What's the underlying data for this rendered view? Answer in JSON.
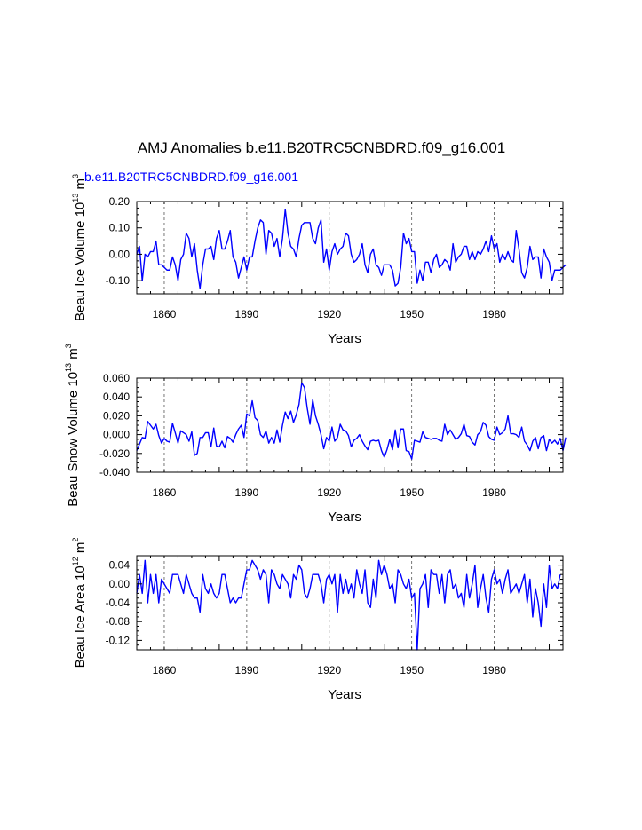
{
  "page": {
    "title": "AMJ Anomalies b.e11.B20TRC5CNBDRD.f09_g16.001",
    "subtitle": "b.e11.B20TRC5CNBDRD.f09_g16.001"
  },
  "colors": {
    "series": "#0000ff",
    "text": "#000000"
  },
  "chart_data": [
    {
      "type": "line",
      "name": "ice-volume",
      "xlabel": "Years",
      "ylabel": {
        "prefix": "Beau Ice Volume 10",
        "exp1": "13",
        "mid": " m",
        "exp2": "3"
      },
      "xlim": [
        1850,
        2005
      ],
      "ylim": [
        -0.15,
        0.2
      ],
      "xticks": [
        1860,
        1890,
        1920,
        1950,
        1980
      ],
      "xtick_labels": [
        "1860",
        "1890",
        "1920",
        "1950",
        "1980"
      ],
      "yticks": [
        -0.1,
        0.0,
        0.1,
        0.2
      ],
      "ytick_labels": [
        "-0.10",
        "0.00",
        "0.10",
        "0.20"
      ],
      "reference_lines_x": [
        1860,
        1890,
        1920,
        1950,
        1980
      ],
      "x_start": 1850,
      "values": [
        0.0,
        0.03,
        -0.1,
        0.0,
        -0.01,
        0.01,
        0.01,
        0.05,
        -0.04,
        -0.04,
        -0.05,
        -0.06,
        -0.06,
        -0.01,
        -0.04,
        -0.1,
        -0.02,
        0.0,
        0.08,
        0.06,
        -0.01,
        0.04,
        -0.06,
        -0.13,
        -0.04,
        0.02,
        0.02,
        0.03,
        -0.02,
        0.06,
        0.09,
        0.02,
        0.02,
        0.05,
        0.09,
        -0.01,
        -0.03,
        -0.09,
        -0.05,
        -0.01,
        -0.06,
        -0.01,
        -0.01,
        0.05,
        0.1,
        0.13,
        0.12,
        0.0,
        0.09,
        0.08,
        0.03,
        0.06,
        -0.01,
        0.06,
        0.17,
        0.08,
        0.03,
        0.02,
        -0.01,
        0.06,
        0.11,
        0.12,
        0.12,
        0.12,
        0.06,
        0.04,
        0.1,
        0.13,
        -0.03,
        0.02,
        -0.06,
        0.01,
        0.04,
        0.0,
        0.02,
        0.03,
        0.08,
        0.07,
        0.0,
        -0.03,
        -0.02,
        0.0,
        0.04,
        -0.04,
        -0.07,
        0.0,
        0.02,
        -0.04,
        -0.05,
        -0.08,
        -0.04,
        -0.04,
        -0.04,
        -0.06,
        -0.12,
        -0.11,
        -0.05,
        0.08,
        0.04,
        0.06,
        0.01,
        0.01,
        -0.11,
        -0.06,
        -0.1,
        -0.03,
        -0.03,
        -0.07,
        -0.02,
        0.0,
        -0.05,
        -0.04,
        -0.02,
        -0.03,
        -0.06,
        0.04,
        -0.03,
        -0.01,
        0.0,
        0.03,
        0.03,
        -0.02,
        0.01,
        -0.02,
        0.01,
        0.0,
        0.02,
        0.05,
        0.01,
        0.07,
        0.02,
        0.04,
        -0.03,
        0.0,
        -0.02,
        0.01,
        -0.02,
        -0.03,
        0.09,
        0.02,
        -0.07,
        -0.09,
        -0.05,
        0.03,
        -0.02,
        -0.01,
        -0.01,
        -0.09,
        0.02,
        -0.01,
        -0.03,
        -0.1,
        -0.06,
        -0.06,
        -0.06,
        -0.05,
        -0.04
      ]
    },
    {
      "type": "line",
      "name": "snow-volume",
      "xlabel": "Years",
      "ylabel": {
        "prefix": "Beau Snow Volume 10",
        "exp1": "13",
        "mid": " m",
        "exp2": "3"
      },
      "xlim": [
        1850,
        2005
      ],
      "ylim": [
        -0.04,
        0.06
      ],
      "xticks": [
        1860,
        1890,
        1920,
        1950,
        1980
      ],
      "xtick_labels": [
        "1860",
        "1890",
        "1920",
        "1950",
        "1980"
      ],
      "yticks": [
        -0.04,
        -0.02,
        0.0,
        0.02,
        0.04,
        0.06
      ],
      "ytick_labels": [
        "-0.040",
        "-0.020",
        "0.000",
        "0.020",
        "0.040",
        "0.060"
      ],
      "reference_lines_x": [
        1860,
        1890,
        1920,
        1950,
        1980
      ],
      "x_start": 1850,
      "values": [
        -0.017,
        -0.01,
        -0.003,
        -0.004,
        0.014,
        0.01,
        0.006,
        0.011,
        -0.001,
        -0.009,
        -0.004,
        -0.007,
        -0.008,
        0.012,
        0.002,
        -0.009,
        0.004,
        0.002,
        0.0,
        -0.007,
        0.003,
        -0.022,
        -0.02,
        -0.003,
        -0.003,
        0.002,
        0.002,
        -0.013,
        0.007,
        -0.012,
        -0.013,
        -0.007,
        -0.014,
        -0.002,
        -0.004,
        -0.008,
        0.0,
        0.006,
        0.01,
        -0.003,
        0.022,
        0.02,
        0.036,
        0.018,
        0.015,
        0.0,
        -0.003,
        0.004,
        -0.009,
        -0.003,
        -0.009,
        0.005,
        -0.008,
        0.01,
        0.024,
        0.017,
        0.025,
        0.013,
        0.021,
        0.032,
        0.055,
        0.05,
        0.028,
        0.011,
        0.037,
        0.02,
        0.011,
        0.0,
        -0.015,
        -0.003,
        -0.007,
        0.008,
        -0.007,
        -0.003,
        0.011,
        0.005,
        0.004,
        -0.001,
        -0.013,
        -0.006,
        -0.004,
        0.0,
        -0.007,
        -0.012,
        -0.016,
        -0.007,
        -0.006,
        -0.007,
        -0.006,
        -0.017,
        -0.024,
        -0.016,
        -0.005,
        -0.016,
        0.005,
        -0.014,
        0.006,
        0.006,
        -0.017,
        -0.018,
        -0.026,
        -0.006,
        -0.007,
        -0.008,
        0.003,
        -0.003,
        -0.004,
        -0.005,
        -0.004,
        -0.004,
        -0.006,
        -0.007,
        0.011,
        0.0,
        0.005,
        0.0,
        -0.005,
        -0.003,
        0.001,
        0.011,
        -0.001,
        -0.002,
        -0.008,
        -0.011,
        0.0,
        0.003,
        0.013,
        0.01,
        -0.002,
        -0.005,
        -0.006,
        0.008,
        0.0,
        0.002,
        0.006,
        0.02,
        0.001,
        0.001,
        0.0,
        -0.003,
        0.008,
        -0.007,
        -0.011,
        -0.017,
        -0.007,
        -0.003,
        -0.015,
        -0.003,
        -0.001,
        -0.017,
        -0.005,
        -0.009,
        -0.006,
        -0.01,
        -0.004,
        -0.017,
        -0.003
      ]
    },
    {
      "type": "line",
      "name": "ice-area",
      "xlabel": "Years",
      "ylabel": {
        "prefix": "Beau Ice Area 10",
        "exp1": "12",
        "mid": " m",
        "exp2": "2"
      },
      "xlim": [
        1850,
        2005
      ],
      "ylim": [
        -0.14,
        0.06
      ],
      "xticks": [
        1860,
        1890,
        1920,
        1950,
        1980
      ],
      "xtick_labels": [
        "1860",
        "1890",
        "1920",
        "1950",
        "1980"
      ],
      "yticks": [
        -0.12,
        -0.08,
        -0.04,
        0.0,
        0.04
      ],
      "ytick_labels": [
        "-0.12",
        "-0.08",
        "-0.04",
        "0.00",
        "0.04"
      ],
      "reference_lines_x": [
        1860,
        1890,
        1920,
        1950,
        1980
      ],
      "x_start": 1850,
      "values": [
        -0.02,
        0.02,
        -0.02,
        0.05,
        -0.04,
        0.02,
        -0.02,
        0.02,
        -0.04,
        0.01,
        0.0,
        -0.01,
        -0.02,
        0.02,
        0.02,
        0.02,
        0.0,
        -0.02,
        0.02,
        0.0,
        -0.02,
        -0.03,
        -0.03,
        -0.06,
        0.02,
        -0.01,
        -0.02,
        0.0,
        -0.02,
        -0.03,
        -0.02,
        0.02,
        0.02,
        -0.01,
        -0.04,
        -0.03,
        -0.04,
        -0.03,
        -0.03,
        0.0,
        0.03,
        0.03,
        0.05,
        0.04,
        0.03,
        0.01,
        0.03,
        0.02,
        -0.04,
        0.03,
        0.02,
        0.0,
        -0.01,
        0.02,
        0.01,
        0.0,
        -0.03,
        0.02,
        0.01,
        0.04,
        0.03,
        -0.02,
        -0.03,
        -0.01,
        0.02,
        0.02,
        0.02,
        0.0,
        -0.04,
        0.01,
        0.02,
        0.0,
        0.02,
        -0.06,
        0.02,
        -0.02,
        0.01,
        -0.02,
        0.0,
        -0.03,
        0.03,
        0.0,
        -0.02,
        0.03,
        -0.04,
        -0.05,
        0.01,
        -0.03,
        0.05,
        0.02,
        0.04,
        0.02,
        -0.01,
        0.0,
        -0.04,
        0.03,
        0.02,
        0.0,
        -0.01,
        0.01,
        -0.03,
        -0.02,
        -0.14,
        -0.01,
        0.0,
        0.02,
        -0.05,
        0.03,
        0.02,
        0.02,
        -0.02,
        0.02,
        -0.04,
        0.02,
        0.03,
        -0.01,
        0.0,
        -0.03,
        -0.02,
        -0.05,
        0.02,
        -0.03,
        0.0,
        0.04,
        -0.05,
        -0.01,
        0.02,
        -0.03,
        -0.06,
        0.01,
        0.03,
        0.0,
        0.01,
        -0.02,
        0.01,
        0.03,
        -0.02,
        -0.01,
        0.0,
        -0.02,
        0.0,
        0.02,
        -0.04,
        0.01,
        -0.07,
        -0.01,
        -0.04,
        -0.09,
        0.0,
        -0.05,
        0.04,
        -0.01,
        0.0,
        -0.01,
        0.02
      ]
    }
  ]
}
